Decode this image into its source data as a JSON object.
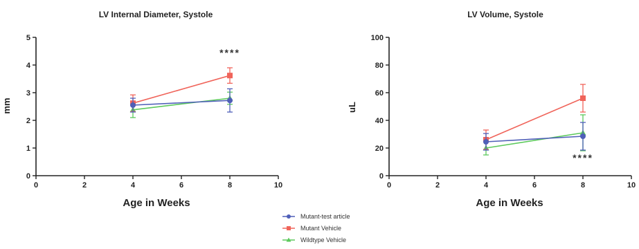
{
  "chart_data": [
    {
      "type": "line",
      "title": "LV Internal Diameter, Systole",
      "xlabel": "Age in Weeks",
      "ylabel": "mm",
      "xlim": [
        0,
        10
      ],
      "ylim": [
        0,
        5
      ],
      "xticks": [
        "0",
        "2",
        "4",
        "6",
        "8",
        "10"
      ],
      "yticks": [
        "0",
        "1",
        "2",
        "3",
        "4",
        "5"
      ],
      "annotation": "****",
      "series": [
        {
          "name": "Mutant-test article",
          "x": [
            4,
            8
          ],
          "y": [
            2.55,
            2.72
          ],
          "err": [
            0.25,
            0.42
          ]
        },
        {
          "name": "Mutant Vehicle",
          "x": [
            4,
            8
          ],
          "y": [
            2.62,
            3.62
          ],
          "err": [
            0.3,
            0.28
          ]
        },
        {
          "name": "Wildtype Vehicle",
          "x": [
            4,
            8
          ],
          "y": [
            2.38,
            2.8
          ],
          "err": [
            0.28,
            0.22
          ]
        }
      ]
    },
    {
      "type": "line",
      "title": "LV Volume, Systole",
      "xlabel": "Age in Weeks",
      "ylabel": "uL",
      "xlim": [
        0,
        10
      ],
      "ylim": [
        0,
        100
      ],
      "xticks": [
        "0",
        "2",
        "4",
        "6",
        "8",
        "10"
      ],
      "yticks": [
        "0",
        "20",
        "40",
        "60",
        "80",
        "100"
      ],
      "annotation": "****",
      "series": [
        {
          "name": "Mutant-test article",
          "x": [
            4,
            8
          ],
          "y": [
            24.5,
            28.5
          ],
          "err": [
            6,
            10
          ]
        },
        {
          "name": "Mutant Vehicle",
          "x": [
            4,
            8
          ],
          "y": [
            26,
            56
          ],
          "err": [
            7,
            10
          ]
        },
        {
          "name": "Wildtype Vehicle",
          "x": [
            4,
            8
          ],
          "y": [
            20,
            31
          ],
          "err": [
            5,
            13
          ]
        }
      ]
    }
  ],
  "legend": {
    "items": [
      {
        "label": "Mutant-test article",
        "color": "#4f5fb8",
        "marker": "circle"
      },
      {
        "label": "Mutant Vehicle",
        "color": "#f0645a",
        "marker": "square"
      },
      {
        "label": "Wildtype Vehicle",
        "color": "#5cc95c",
        "marker": "triangle"
      }
    ]
  }
}
